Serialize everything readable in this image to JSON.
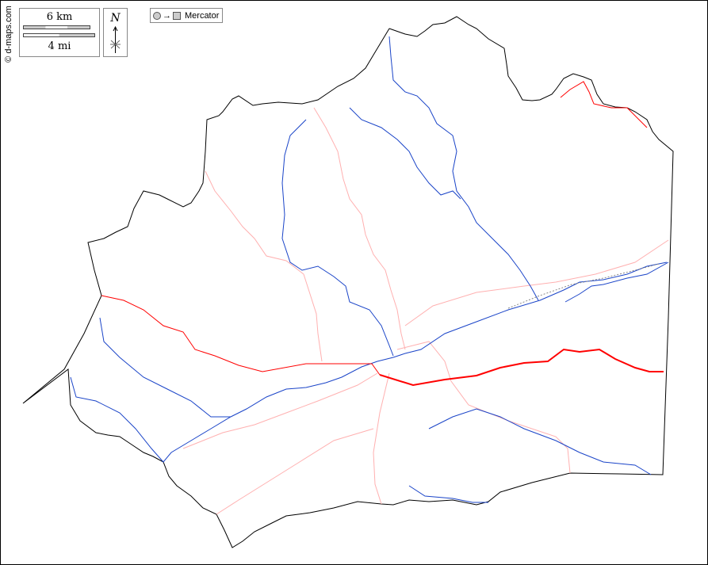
{
  "credit": "© d-maps.com",
  "scale": {
    "km_label": "6 km",
    "mi_label": "4 mi"
  },
  "north": {
    "label": "N"
  },
  "projection": {
    "arrow": "→",
    "label": "Mercator"
  },
  "colors": {
    "border": "#000000",
    "river": "#1a44c8",
    "main_road": "#ff0000",
    "secondary_road": "#ffb0b0"
  }
}
